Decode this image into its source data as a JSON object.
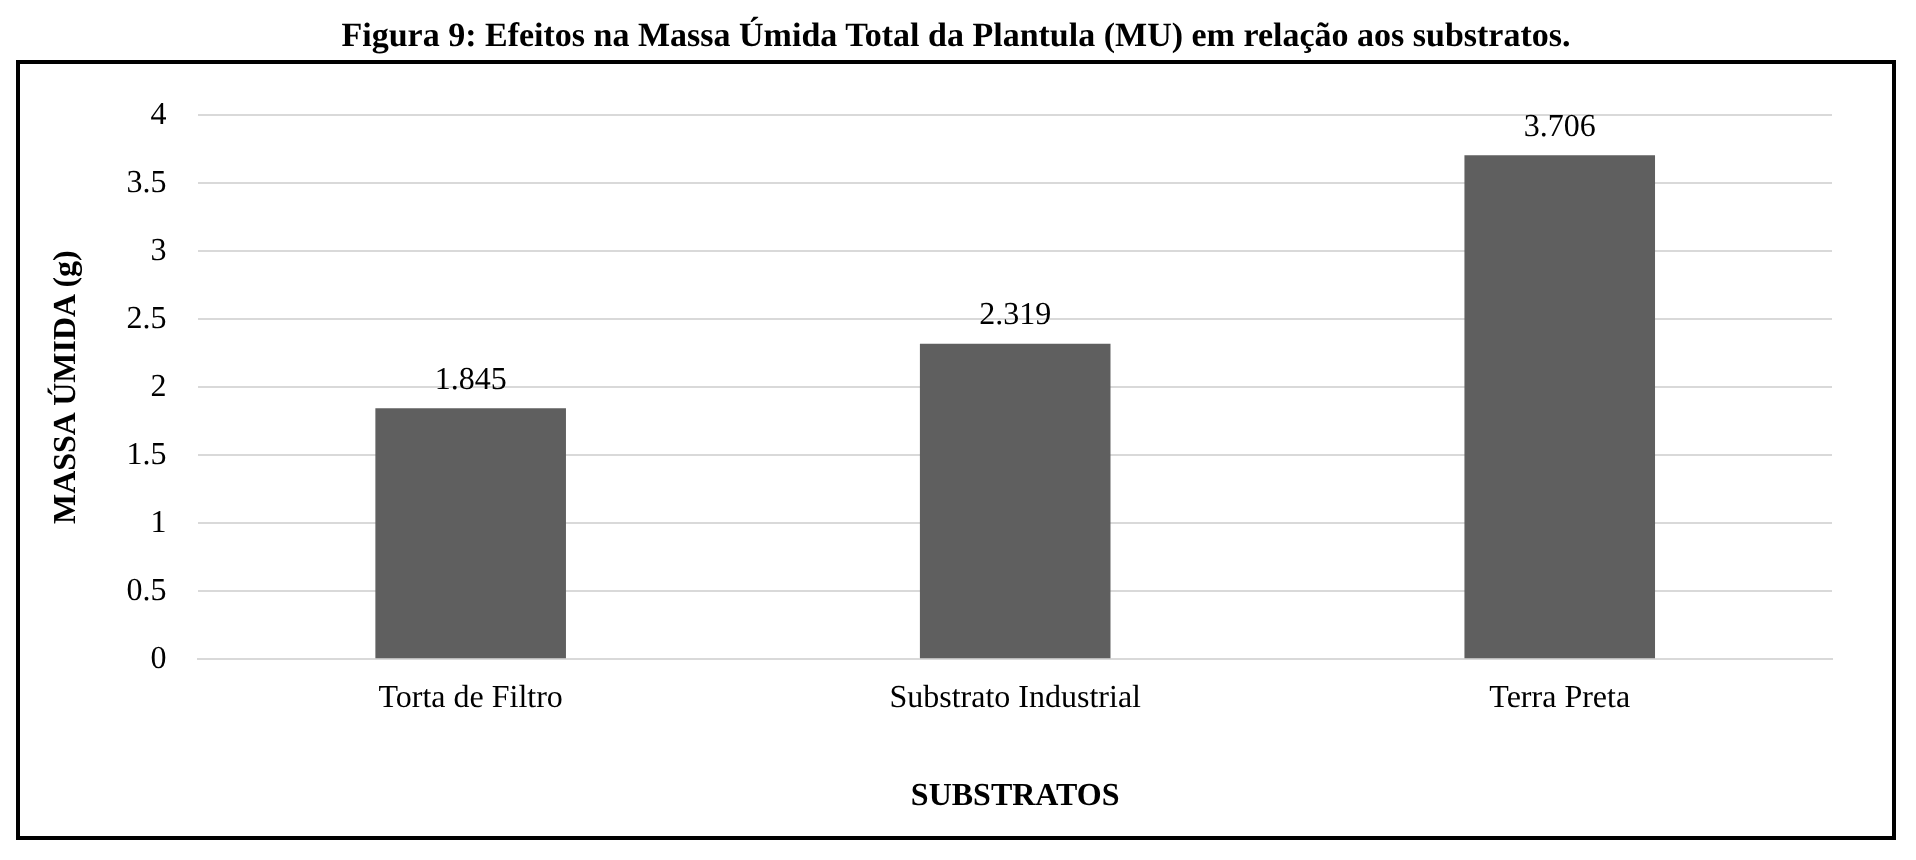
{
  "chart_data": {
    "type": "bar",
    "title": "Figura 9: Efeitos na Massa Úmida Total da Plantula (MU) em relação aos substratos.",
    "xlabel": "SUBSTRATOS",
    "ylabel": "MASSA ÚMIDA (g)",
    "categories": [
      "Torta de Filtro",
      "Substrato Industrial",
      "Terra Preta"
    ],
    "values": [
      1.845,
      2.319,
      3.706
    ],
    "color": "#5f5f5f",
    "data_labels": true,
    "ylim": [
      0,
      4
    ],
    "yticks": [
      0,
      0.5,
      1,
      1.5,
      2,
      2.5,
      3,
      3.5,
      4
    ],
    "grid": "y",
    "legend": false
  }
}
